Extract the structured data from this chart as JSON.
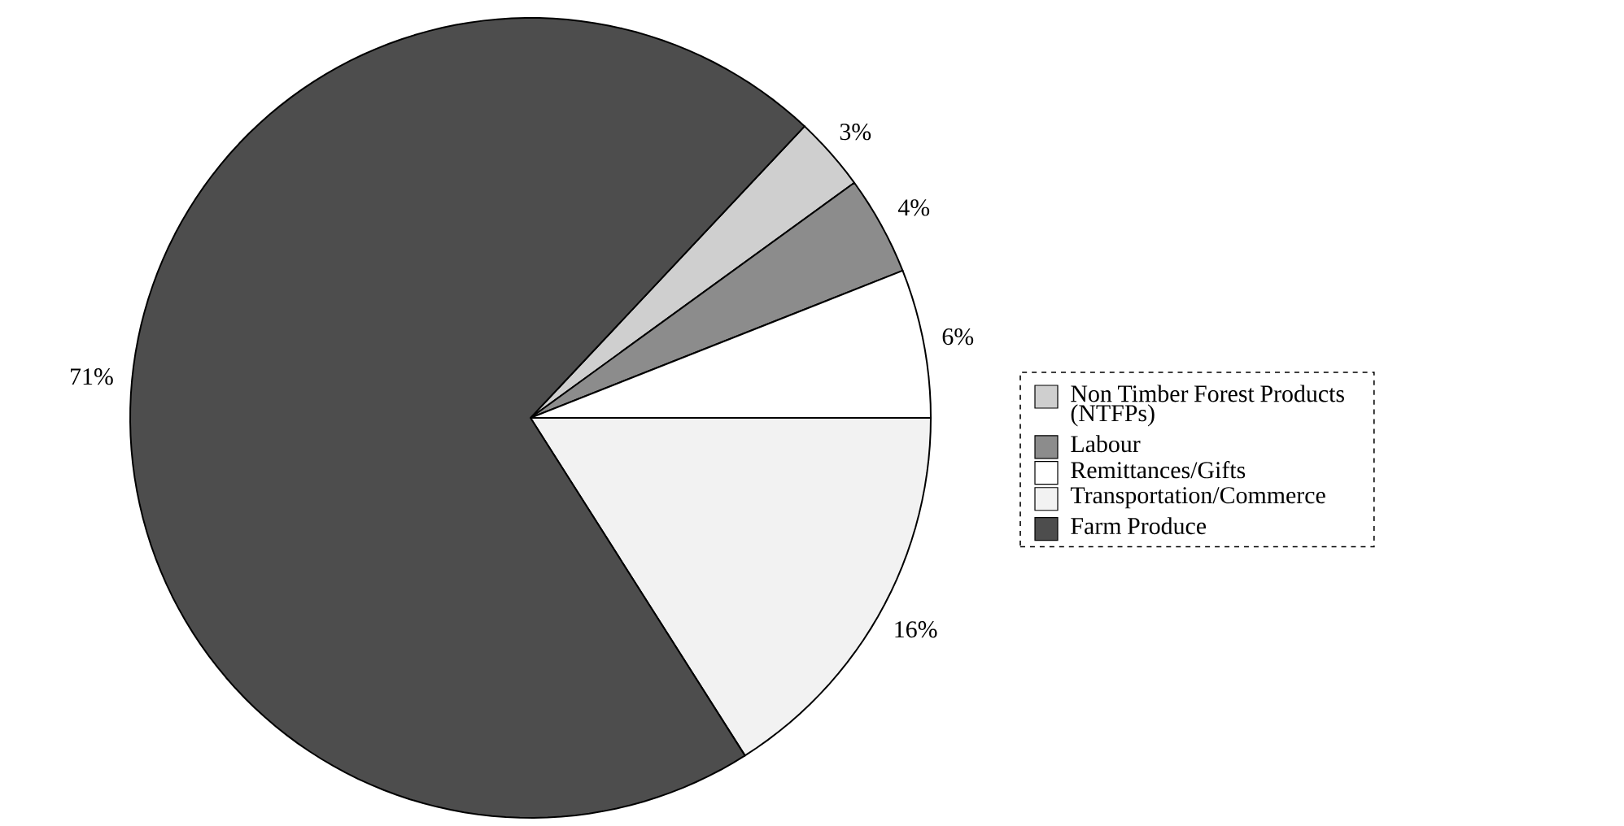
{
  "chart_data": {
    "type": "pie",
    "categories": [
      "Non Timber Forest Products (NTFPs)",
      "Labour",
      "Remittances/Gifts",
      "Transportation/Commerce",
      "Farm Produce"
    ],
    "values": [
      3,
      4,
      6,
      16,
      71
    ],
    "value_labels": [
      "3%",
      "4%",
      "6%",
      "16%",
      "71%"
    ],
    "colors": [
      "#cfcfcf",
      "#8c8c8c",
      "#ffffff",
      "#f2f2f2",
      "#4d4d4d"
    ],
    "legend": "right"
  }
}
